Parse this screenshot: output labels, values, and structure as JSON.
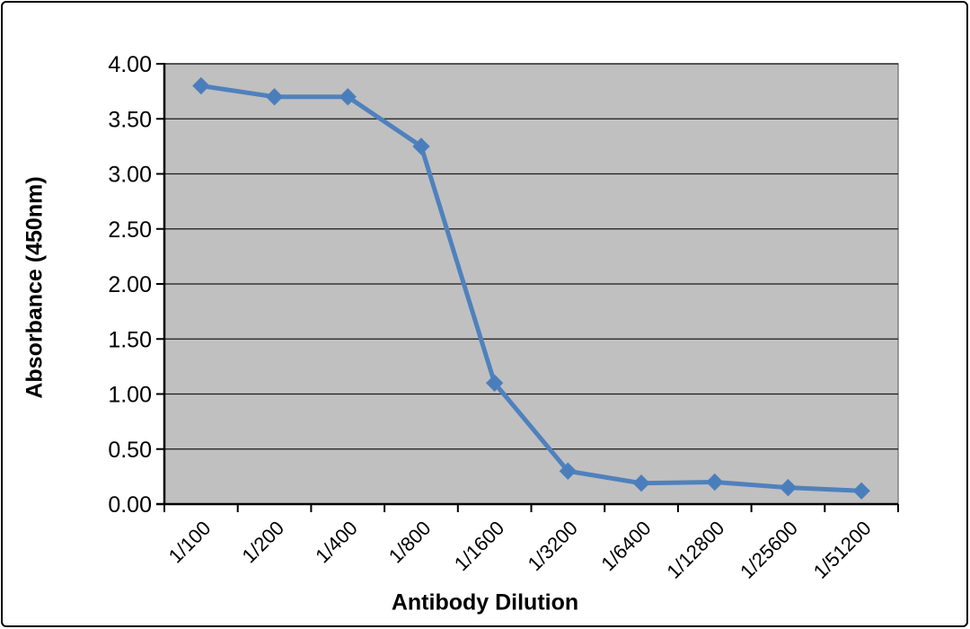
{
  "chart_data": {
    "type": "line",
    "title": "",
    "xlabel": "Antibody Dilution",
    "ylabel": "Absorbance (450nm)",
    "categories": [
      "1/100",
      "1/200",
      "1/400",
      "1/800",
      "1/1600",
      "1/3200",
      "1/6400",
      "1/12800",
      "1/25600",
      "1/51200"
    ],
    "series": [
      {
        "name": "Absorbance (450nm)",
        "values": [
          3.8,
          3.7,
          3.7,
          3.25,
          1.1,
          0.3,
          0.19,
          0.2,
          0.15,
          0.12
        ]
      }
    ],
    "ylim": [
      0,
      4
    ],
    "ytick_step": 0.5,
    "ytick_labels": [
      "0.00",
      "0.50",
      "1.00",
      "1.50",
      "2.00",
      "2.50",
      "3.00",
      "3.50",
      "4.00"
    ],
    "xtick_rotation_deg": -45,
    "grid": "horizontal",
    "legend_position": "none",
    "marker": "diamond",
    "colors": {
      "line": "#4f81bd",
      "marker_fill": "#4a7ebb",
      "plot_bg": "#c0c0c0",
      "plot_border": "#808080",
      "gridline": "#1a1a1a",
      "axis": "#000000",
      "text": "#000000",
      "chart_bg": "#ffffff",
      "frame_border": "#000000"
    }
  }
}
